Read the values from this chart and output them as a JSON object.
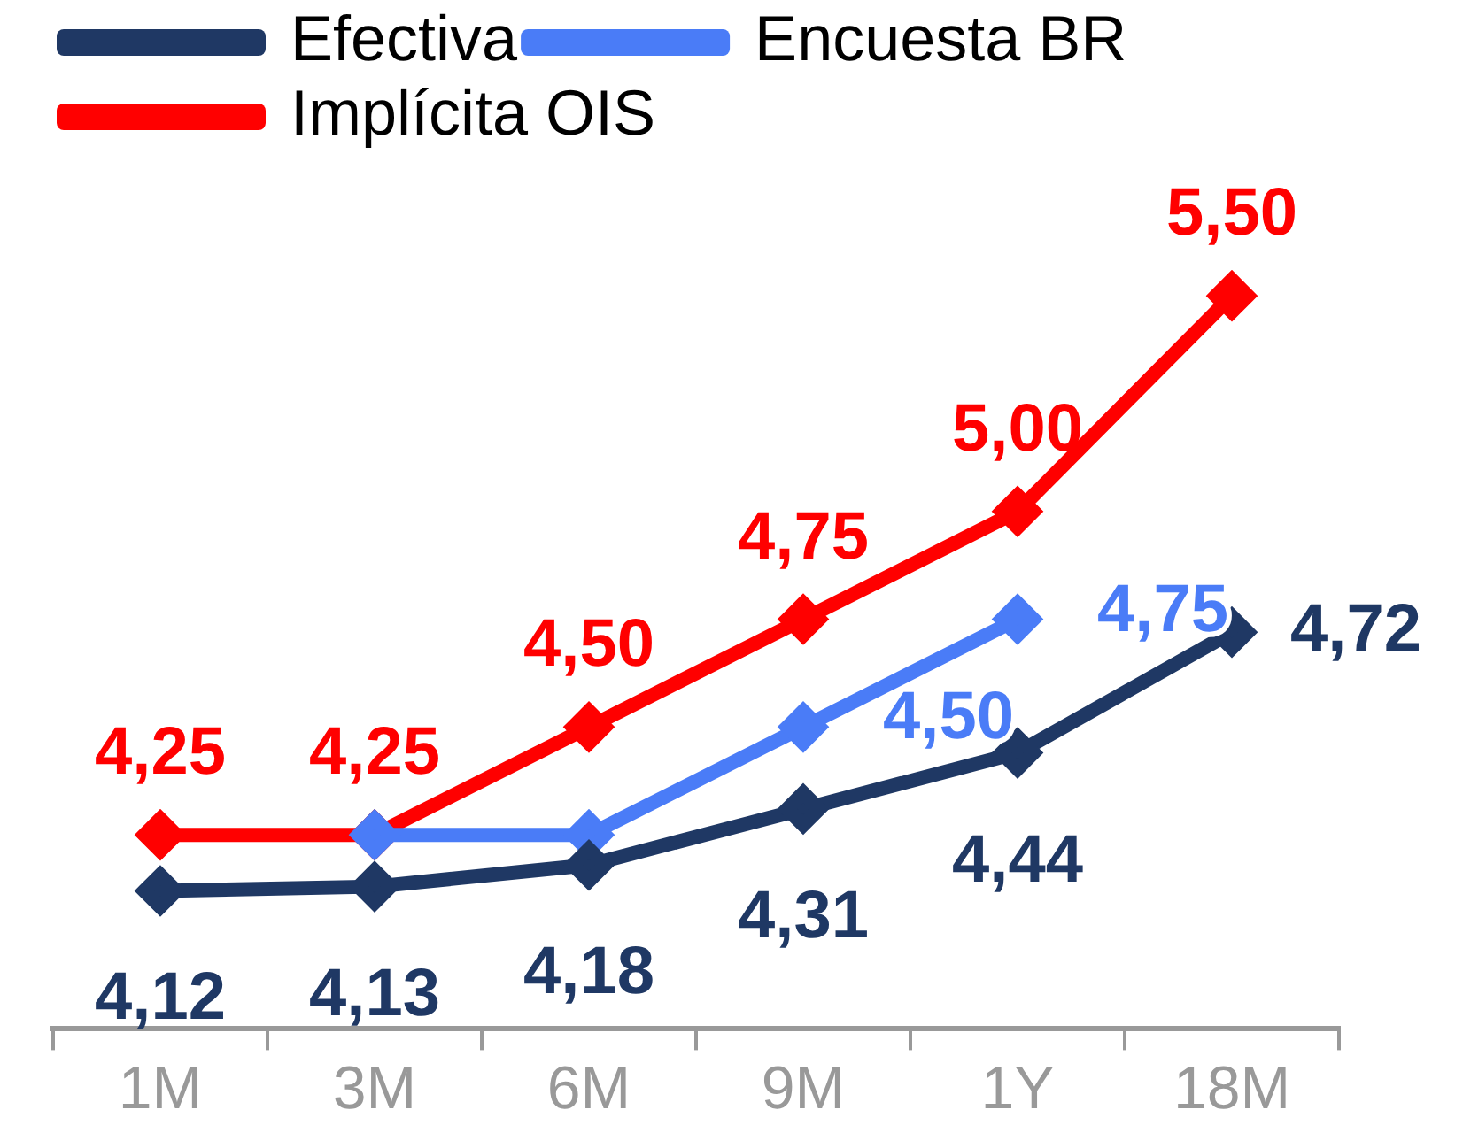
{
  "chart_data": {
    "type": "line",
    "categories": [
      "1M",
      "3M",
      "6M",
      "9M",
      "1Y",
      "18M"
    ],
    "series": [
      {
        "name": "Efectiva",
        "color": "#1f3864",
        "values": [
          4.12,
          4.13,
          4.18,
          4.31,
          4.44,
          4.72
        ],
        "value_labels": [
          "4,12",
          "4,13",
          "4,18",
          "4,31",
          "4,44",
          "4,72"
        ]
      },
      {
        "name": "Encuesta BR",
        "color": "#4a7cf7",
        "values": [
          null,
          4.25,
          4.25,
          4.5,
          4.75,
          null
        ],
        "value_labels": [
          null,
          null,
          null,
          "4,50",
          "4,75",
          null
        ]
      },
      {
        "name": "Implícita OIS",
        "color": "#ff0000",
        "values": [
          4.25,
          4.25,
          4.5,
          4.75,
          5.0,
          5.5
        ],
        "value_labels": [
          "4,25",
          "4,25",
          "4,50",
          "4,75",
          "5,00",
          "5,50"
        ]
      }
    ],
    "marker": "diamond",
    "line_style": "solid",
    "legend": "top left",
    "grid": false
  }
}
